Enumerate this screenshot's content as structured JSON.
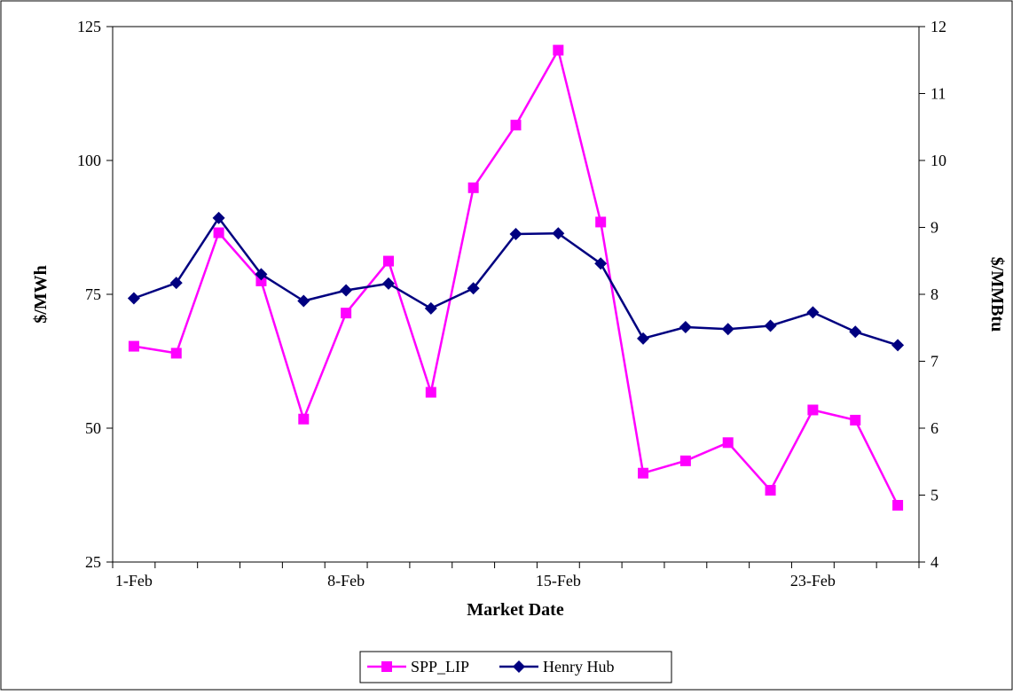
{
  "chart_data": {
    "type": "line",
    "xlabel": "Market Date",
    "ylabel_left": "$/MWh",
    "ylabel_right": "$/MMBtu",
    "y_left_range": [
      25,
      125
    ],
    "y_left_ticks": [
      "25",
      "50",
      "75",
      "100",
      "125"
    ],
    "y_right_range": [
      4,
      12
    ],
    "y_right_ticks": [
      "4",
      "5",
      "6",
      "7",
      "8",
      "9",
      "10",
      "11",
      "12"
    ],
    "x_tick_labels": [
      "1-Feb",
      "8-Feb",
      "15-Feb",
      "23-Feb"
    ],
    "legend_position": "bottom-center",
    "grid": false,
    "series": [
      {
        "name": "SPP_LIP",
        "axis": "left",
        "color": "#ff00ff",
        "marker": "square",
        "values": [
          65.3,
          64.0,
          86.5,
          77.5,
          51.7,
          71.5,
          81.2,
          56.7,
          94.9,
          106.6,
          120.6,
          88.5,
          41.6,
          43.9,
          47.3,
          38.4,
          53.4,
          51.5,
          35.6
        ]
      },
      {
        "name": "Henry Hub",
        "axis": "right",
        "color": "#000080",
        "marker": "diamond",
        "values": [
          7.94,
          8.17,
          9.14,
          8.3,
          7.9,
          8.06,
          8.16,
          7.79,
          8.09,
          8.9,
          8.91,
          8.46,
          7.34,
          7.51,
          7.48,
          7.53,
          7.73,
          7.44,
          7.24
        ]
      }
    ]
  }
}
